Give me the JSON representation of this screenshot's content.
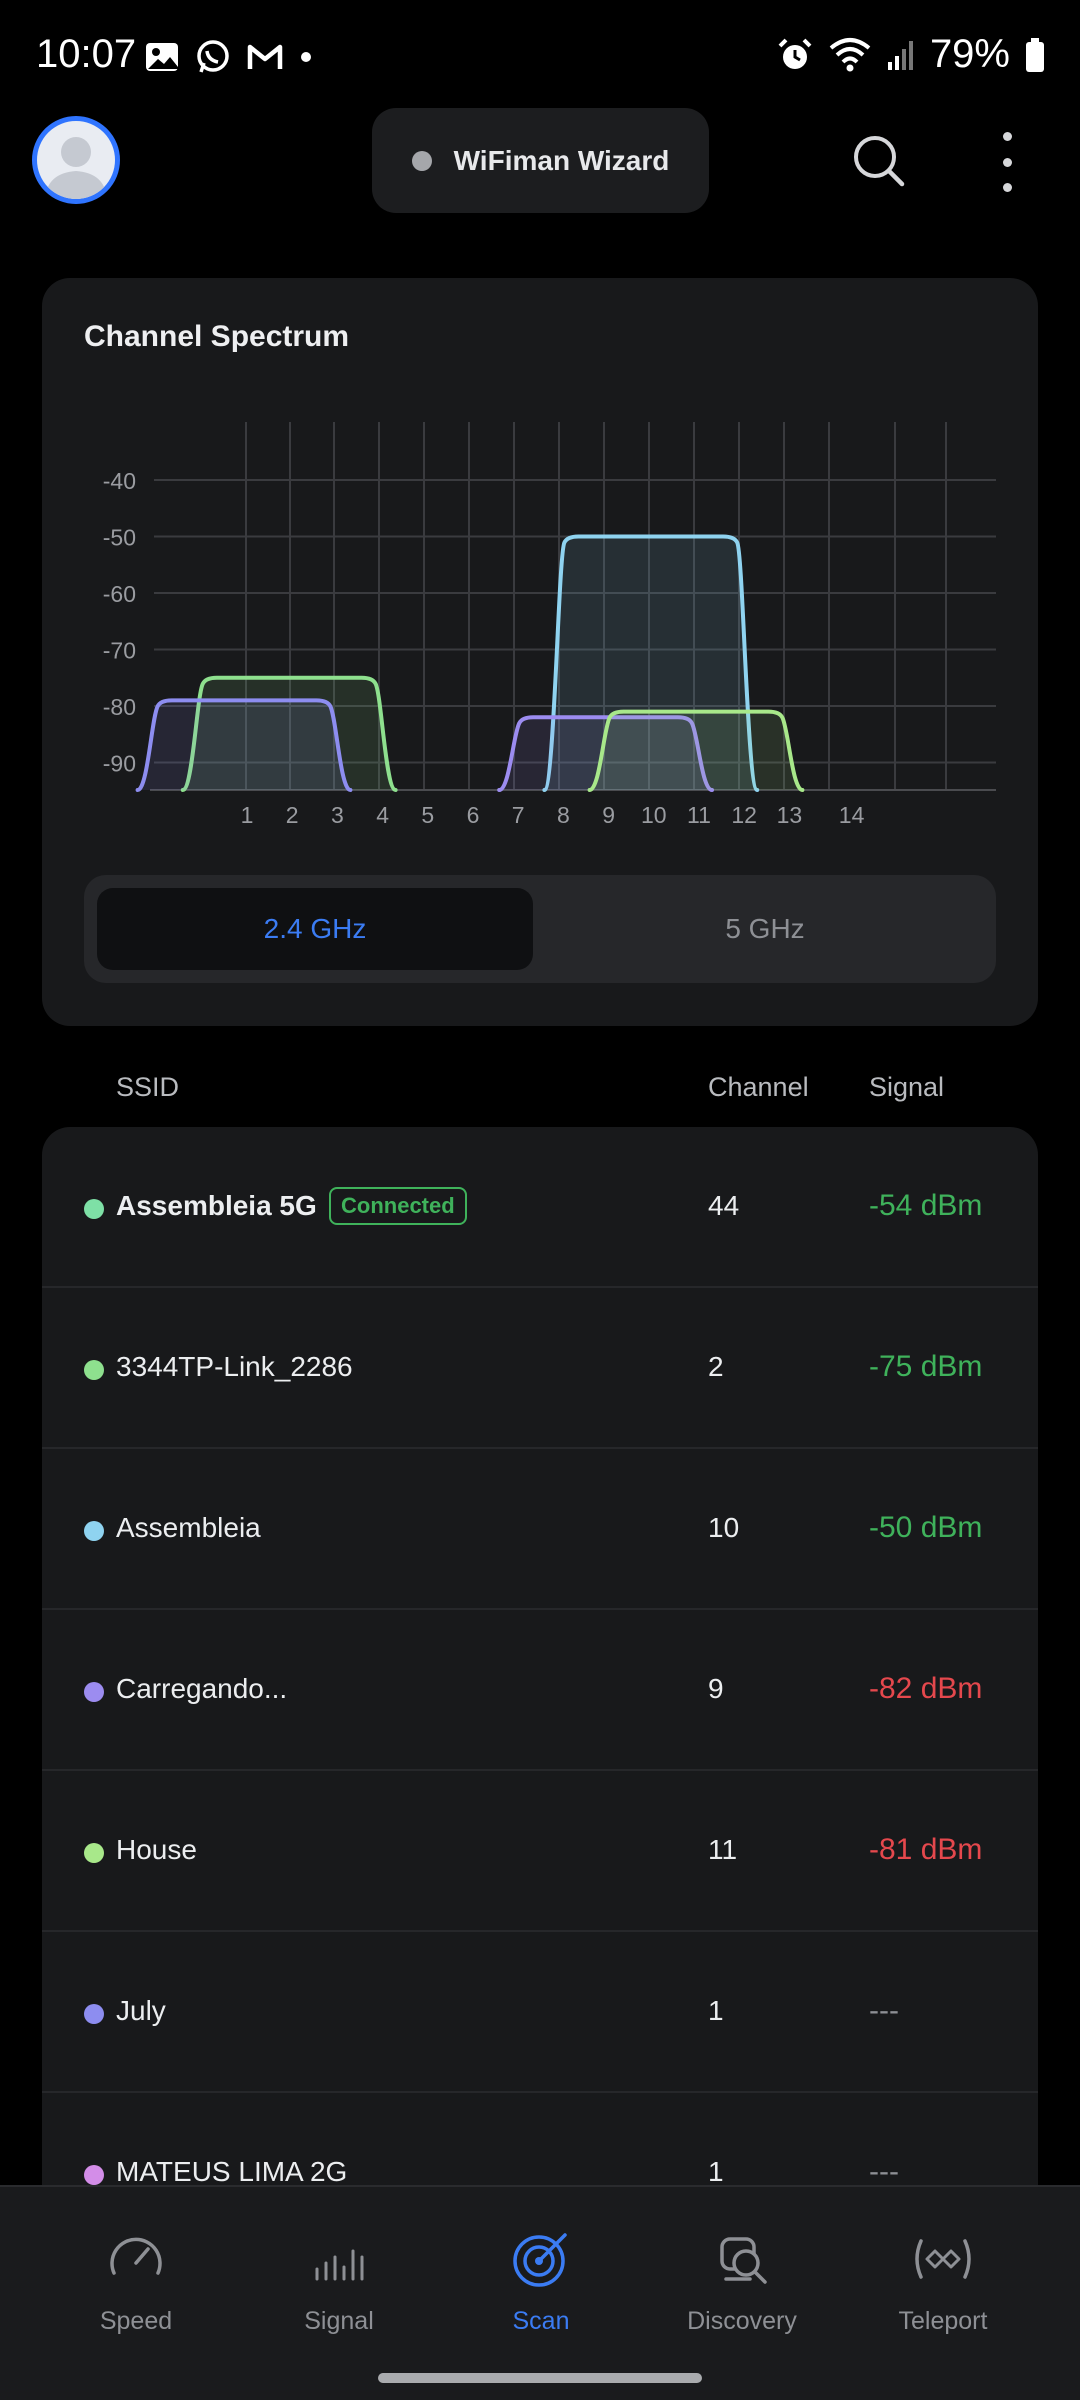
{
  "status_bar": {
    "time": "10:07",
    "battery": "79%",
    "icons": [
      "gallery-icon",
      "whatsapp-icon",
      "gmail-icon",
      "notification-dot-icon",
      "alarm-icon",
      "wifi-icon",
      "cell-signal-icon",
      "battery-icon"
    ]
  },
  "header": {
    "wizard_label": "WiFiman Wizard"
  },
  "spectrum": {
    "title": "Channel Spectrum",
    "bands": [
      "2.4 GHz",
      "5 GHz"
    ],
    "selected_band": "2.4 GHz"
  },
  "chart_data": {
    "type": "area",
    "title": "Channel Spectrum",
    "xlabel": "",
    "ylabel": "",
    "x_ticks": [
      "1",
      "2",
      "3",
      "4",
      "5",
      "6",
      "7",
      "8",
      "9",
      "10",
      "11",
      "12",
      "13",
      "14"
    ],
    "y_ticks": [
      "-40",
      "-50",
      "-60",
      "-70",
      "-80",
      "-90"
    ],
    "ylim": [
      -95,
      -30
    ],
    "grid": true,
    "series": [
      {
        "channel": 2,
        "signal_dbm": -75,
        "color": "#8ee08e"
      },
      {
        "channel": 1,
        "signal_dbm": -79,
        "color": "#8d8df0"
      },
      {
        "channel": 10,
        "signal_dbm": -50,
        "color": "#8fd3f0"
      },
      {
        "channel": 9,
        "signal_dbm": -82,
        "color": "#9c8cf0"
      },
      {
        "channel": 11,
        "signal_dbm": -81,
        "color": "#a8e88a"
      }
    ]
  },
  "table": {
    "headers": {
      "ssid": "SSID",
      "channel": "Channel",
      "signal": "Signal"
    },
    "rows": [
      {
        "ssid": "Assembleia 5G",
        "badge": "Connected",
        "channel": "44",
        "signal": "-54 dBm",
        "dot_color": "#7ee0a6",
        "signal_color": "#3fb25b"
      },
      {
        "ssid": "3344TP-Link_2286",
        "channel": "2",
        "signal": "-75 dBm",
        "dot_color": "#8ee08e",
        "signal_color": "#3fb25b"
      },
      {
        "ssid": "Assembleia",
        "channel": "10",
        "signal": "-50 dBm",
        "dot_color": "#8fd3f0",
        "signal_color": "#3fb25b"
      },
      {
        "ssid": "Carregando...",
        "channel": "9",
        "signal": "-82 dBm",
        "dot_color": "#9c8cf0",
        "signal_color": "#e5484d"
      },
      {
        "ssid": "House",
        "channel": "11",
        "signal": "-81 dBm",
        "dot_color": "#a8e88a",
        "signal_color": "#e5484d"
      },
      {
        "ssid": "July",
        "channel": "1",
        "signal": "---",
        "dot_color": "#8d8df0",
        "signal_color": "#8e9095"
      },
      {
        "ssid": "MATEUS LIMA 2G",
        "channel": "1",
        "signal": "---",
        "dot_color": "#d38de8",
        "signal_color": "#8e9095"
      }
    ]
  },
  "bottom_nav": {
    "items": [
      {
        "label": "Speed",
        "icon": "speedometer-icon"
      },
      {
        "label": "Signal",
        "icon": "signal-bars-icon"
      },
      {
        "label": "Scan",
        "icon": "radar-icon"
      },
      {
        "label": "Discovery",
        "icon": "discovery-icon"
      },
      {
        "label": "Teleport",
        "icon": "teleport-icon"
      }
    ],
    "active": "Scan"
  }
}
